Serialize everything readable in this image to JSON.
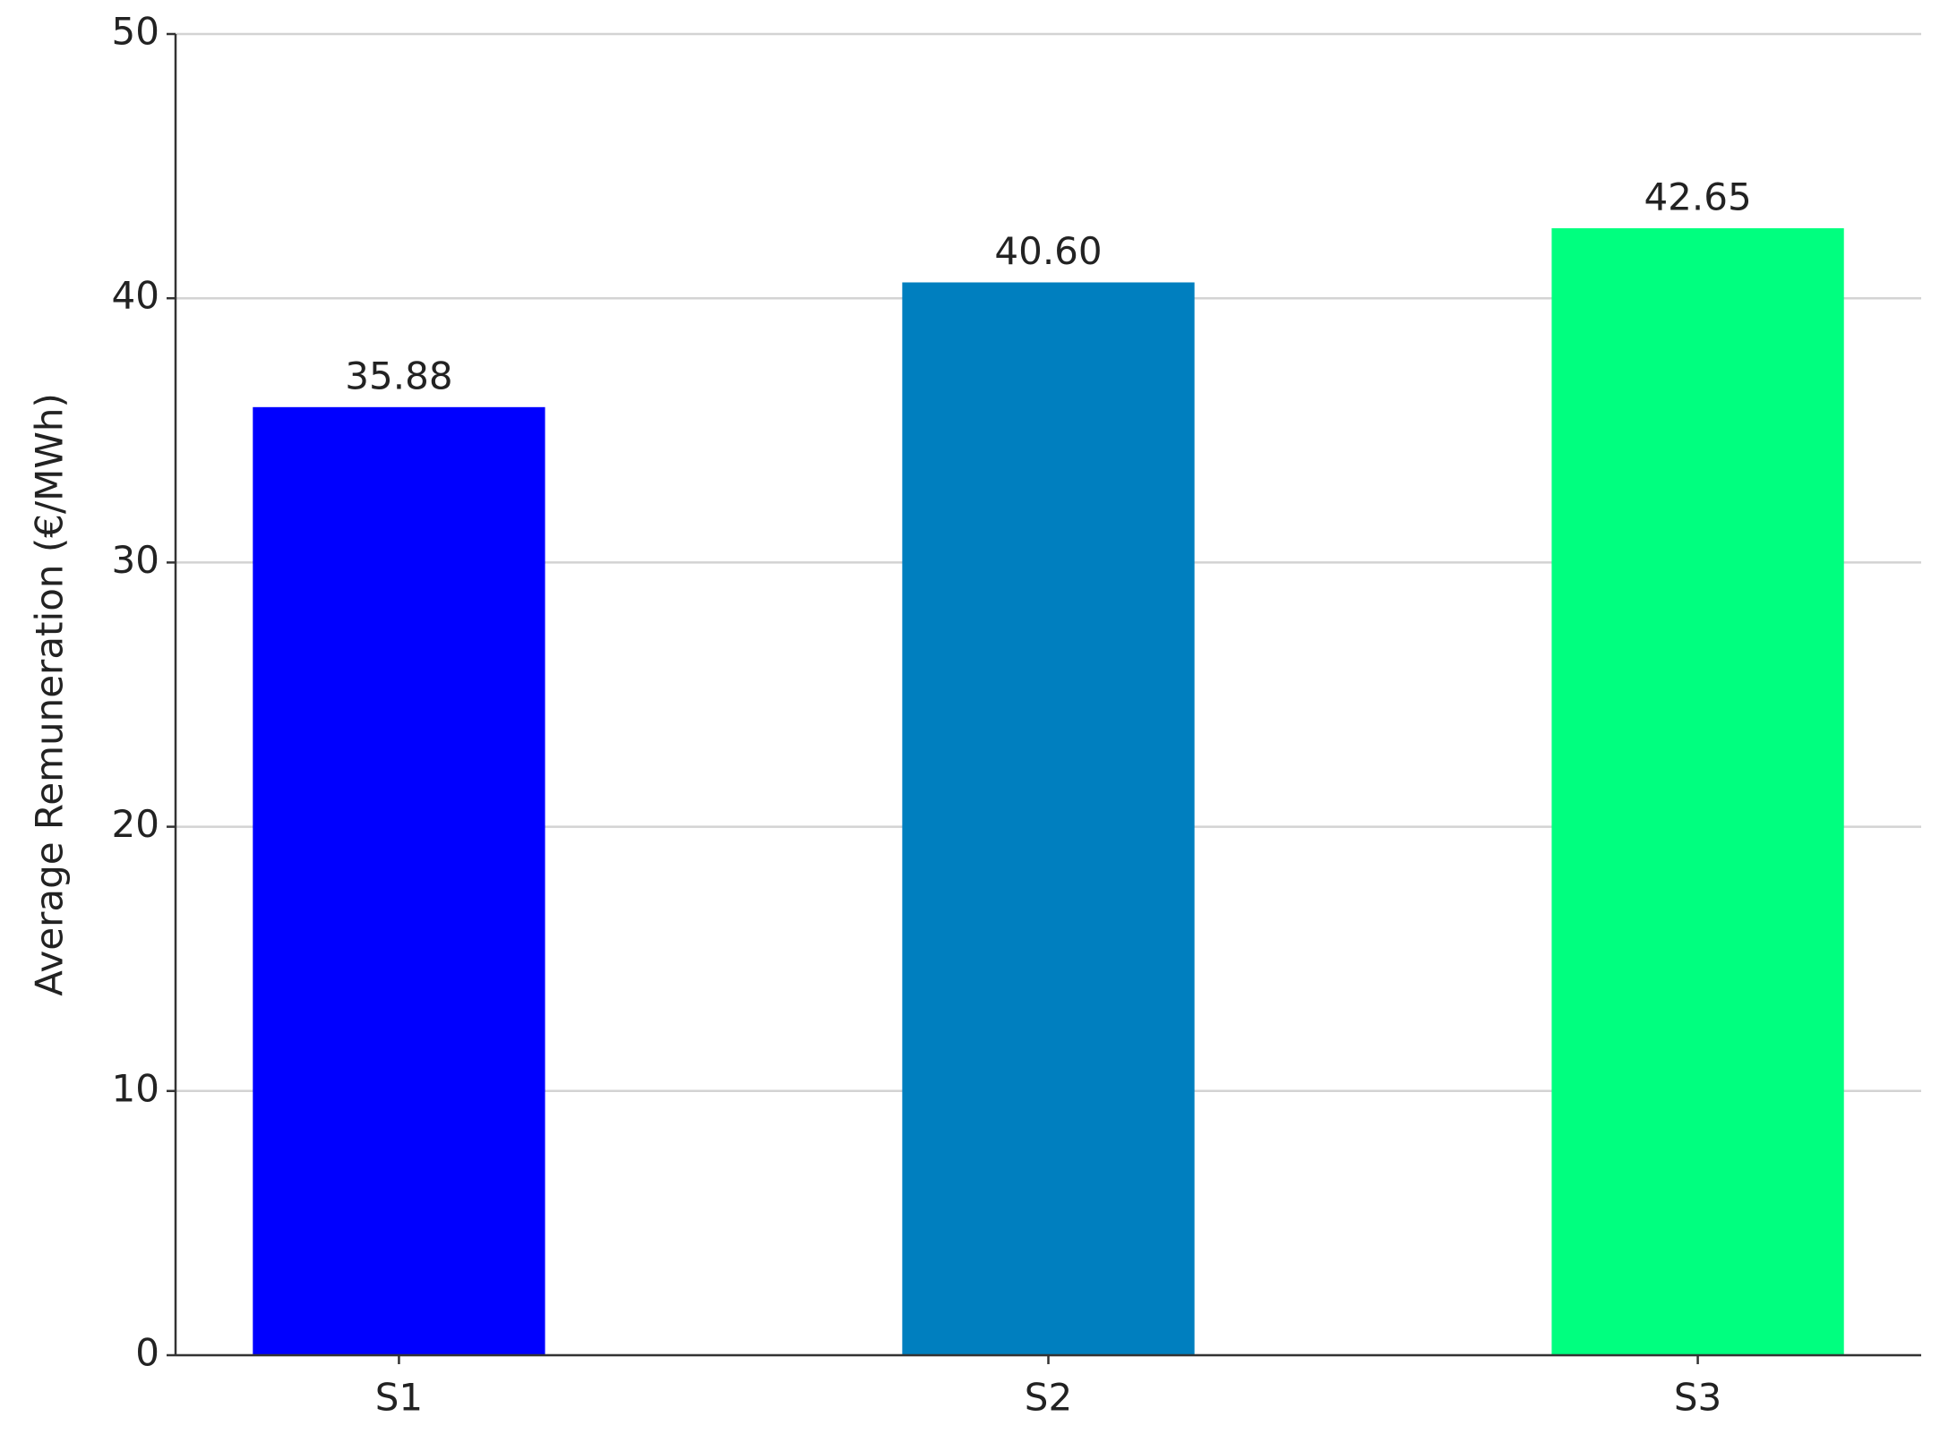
{
  "chart_data": {
    "type": "bar",
    "y_label": "Average Remuneration (€/MWh)",
    "categories": [
      "S1",
      "S2",
      "S3"
    ],
    "values": [
      35.88,
      40.6,
      42.65
    ],
    "value_labels": [
      "35.88",
      "40.60",
      "42.65"
    ],
    "colors": [
      "#0000ff",
      "#007fbf",
      "#00ff7f"
    ],
    "ylim": [
      0,
      50
    ],
    "yticks": [
      0,
      10,
      20,
      30,
      40,
      50
    ],
    "grid": true
  }
}
